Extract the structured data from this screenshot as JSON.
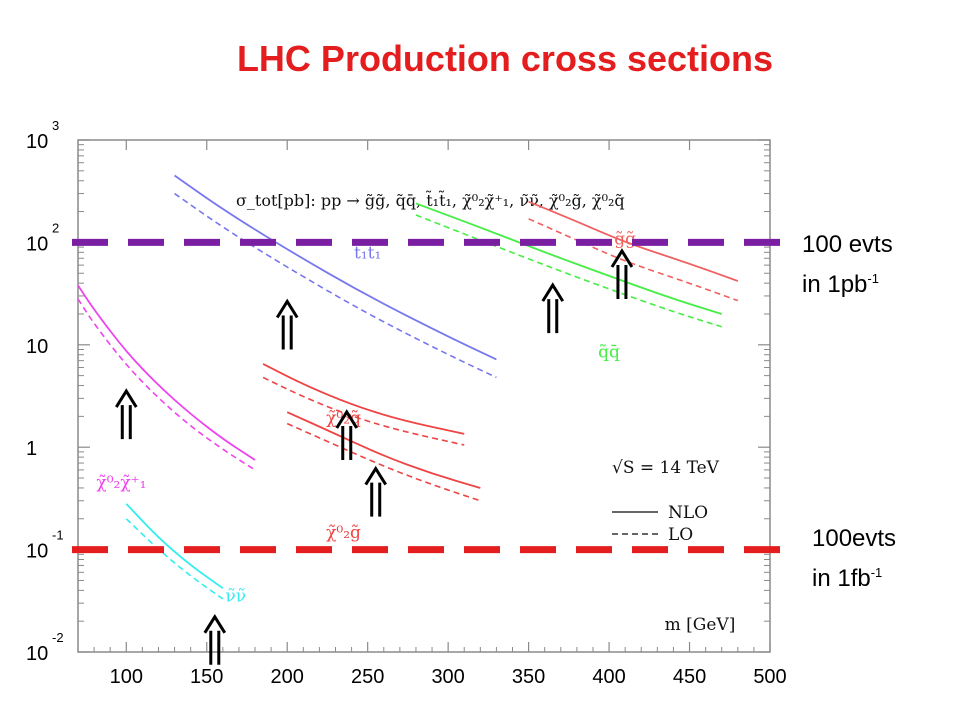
{
  "slide": {
    "title": "LHC Production cross sections",
    "purple_label_line1": "100 evts",
    "purple_label_line2": "in 1pb",
    "purple_label_sup": "-1",
    "red_label_line1": "100evts",
    "red_label_line2": "in 1fb",
    "red_label_sup": "-1"
  },
  "chart_data": {
    "type": "line",
    "title": "σ_tot[pb]: pp → g̃g̃, q̃q̄, t̃₁t̃₁, χ̃⁰₂χ̃⁺₁, ν̃ν̃, χ̃⁰₂g̃, χ̃⁰₂q̃",
    "xlabel": "m [GeV]",
    "ylabel": "",
    "xlim": [
      70,
      500
    ],
    "ylim": [
      0.01,
      1000
    ],
    "yscale": "log",
    "xticks": [
      "100",
      "150",
      "200",
      "250",
      "300",
      "350",
      "400",
      "450",
      "500"
    ],
    "yticks": [
      {
        "base": "10",
        "exp": "3"
      },
      {
        "base": "10",
        "exp": "2"
      },
      {
        "base": "10",
        "exp": ""
      },
      {
        "base": "1",
        "exp": ""
      },
      {
        "base": "10",
        "exp": "-1"
      },
      {
        "base": "10",
        "exp": "-2"
      }
    ],
    "energy_label": "√S = 14 TeV",
    "legend": {
      "placement": "bottom-right",
      "items": [
        {
          "label": "NLO",
          "style": "solid"
        },
        {
          "label": "LO",
          "style": "dashed"
        }
      ]
    },
    "series": [
      {
        "name": "t̃₁t̃₁",
        "color": "#7777ee",
        "label_pos": [
          250,
          70
        ],
        "nlo": {
          "x": [
            130,
            160,
            200,
            250,
            300,
            330
          ],
          "y": [
            450,
            210,
            85,
            30,
            12,
            7.2
          ]
        },
        "lo": {
          "x": [
            130,
            160,
            200,
            250,
            300,
            330
          ],
          "y": [
            300,
            140,
            57,
            20,
            8,
            4.8
          ]
        }
      },
      {
        "name": "g̃g̃",
        "color": "#f06060",
        "label_pos": [
          410,
          95
        ],
        "nlo": {
          "x": [
            350,
            380,
            410,
            450,
            480
          ],
          "y": [
            250,
            160,
            100,
            62,
            42
          ]
        },
        "lo": {
          "x": [
            350,
            380,
            410,
            450,
            480
          ],
          "y": [
            170,
            105,
            65,
            40,
            27
          ]
        }
      },
      {
        "name": "q̃q̄",
        "color": "#44ee44",
        "label_pos": [
          400,
          7.5
        ],
        "nlo": {
          "x": [
            280,
            320,
            360,
            400,
            440,
            470
          ],
          "y": [
            240,
            140,
            80,
            47,
            28,
            20
          ]
        },
        "lo": {
          "x": [
            280,
            320,
            360,
            400,
            440,
            470
          ],
          "y": [
            185,
            105,
            60,
            35,
            21,
            15
          ]
        }
      },
      {
        "name": "χ̃⁰₂χ̃⁺₁",
        "color": "#ee44ee",
        "label_pos": [
          97,
          0.4
        ],
        "nlo": {
          "x": [
            70,
            80,
            100,
            120,
            140,
            160,
            180
          ],
          "y": [
            38,
            22,
            8.5,
            4,
            2.1,
            1.2,
            0.75
          ]
        },
        "lo": {
          "x": [
            70,
            80,
            100,
            120,
            140,
            160,
            180
          ],
          "y": [
            28,
            16,
            6.3,
            3,
            1.6,
            0.95,
            0.6
          ]
        }
      },
      {
        "name": "χ̃⁰₂q̃",
        "color": "#ee4444",
        "label_pos": [
          235,
          1.7
        ],
        "nlo": {
          "x": [
            185,
            210,
            240,
            270,
            310
          ],
          "y": [
            6.5,
            4.1,
            2.6,
            1.85,
            1.35
          ]
        },
        "lo": {
          "x": [
            185,
            210,
            240,
            270,
            310
          ],
          "y": [
            4.8,
            3.1,
            2.0,
            1.45,
            1.05
          ]
        }
      },
      {
        "name": "χ̃⁰₂g̃",
        "color": "#ee4444",
        "label_pos": [
          235,
          0.13
        ],
        "nlo": {
          "x": [
            200,
            230,
            260,
            290,
            320
          ],
          "y": [
            2.2,
            1.35,
            0.82,
            0.55,
            0.4
          ]
        },
        "lo": {
          "x": [
            200,
            230,
            260,
            290,
            320
          ],
          "y": [
            1.7,
            1.05,
            0.65,
            0.43,
            0.3
          ]
        }
      },
      {
        "name": "ν̃ν̃",
        "color": "#33eeee",
        "label_pos": [
          168,
          0.031
        ],
        "nlo": {
          "x": [
            100,
            120,
            140,
            160
          ],
          "y": [
            0.28,
            0.13,
            0.07,
            0.042
          ]
        },
        "lo": {
          "x": [
            100,
            120,
            140,
            160
          ],
          "y": [
            0.2,
            0.1,
            0.055,
            0.033
          ]
        }
      }
    ],
    "arrows": [
      {
        "x": 100,
        "y": 1.2
      },
      {
        "x": 155,
        "y": 0.0075
      },
      {
        "x": 200,
        "y": 9
      },
      {
        "x": 237,
        "y": 0.75
      },
      {
        "x": 255,
        "y": 0.21
      },
      {
        "x": 365,
        "y": 13
      },
      {
        "x": 408,
        "y": 28
      }
    ],
    "reference_lines": [
      {
        "y": 100,
        "color": "#7b1fa2",
        "label": "100 evts in 1pb-1"
      },
      {
        "y": 0.1,
        "color": "#e41e1e",
        "label": "100evts in 1fb-1"
      }
    ]
  }
}
